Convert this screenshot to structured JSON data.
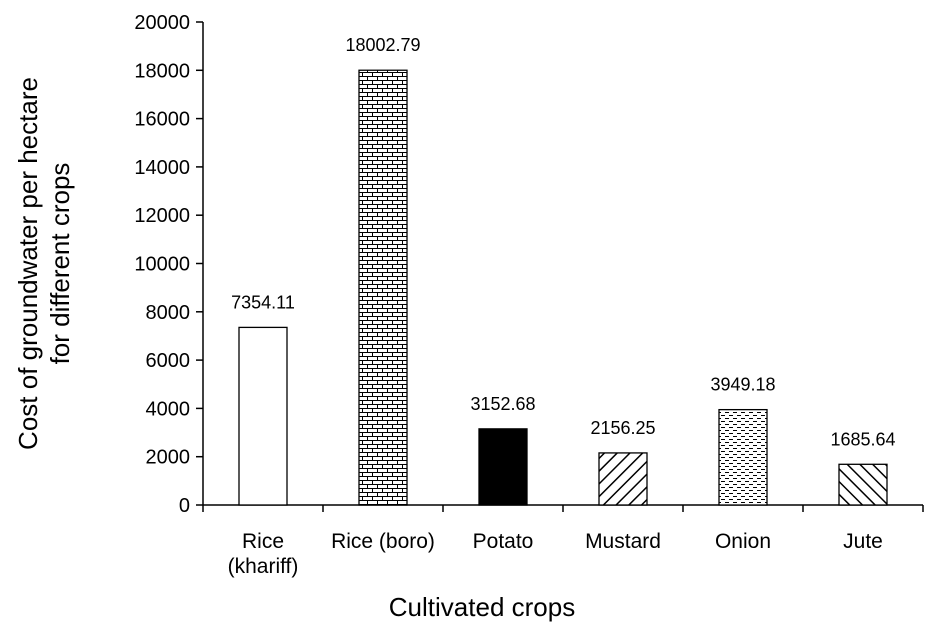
{
  "chart_data": {
    "type": "bar",
    "categories": [
      [
        "Rice",
        "(khariff)"
      ],
      [
        "Rice (boro)"
      ],
      [
        "Potato"
      ],
      [
        "Mustard"
      ],
      [
        "Onion"
      ],
      [
        "Jute"
      ]
    ],
    "values": [
      7354.11,
      18002.79,
      3152.68,
      2156.25,
      3949.18,
      1685.64
    ],
    "data_labels": [
      "7354.11",
      "18002.79",
      "3152.68",
      "2156.25",
      "3949.18",
      "1685.64"
    ],
    "bar_patterns": [
      "none",
      "brick",
      "solid",
      "diagonal-up",
      "dashes",
      "diagonal-down"
    ],
    "title": "",
    "xlabel": "Cultivated crops",
    "ylabel": [
      "Cost of groundwater per hectare",
      "for different crops"
    ],
    "ylim": [
      0,
      20000
    ],
    "yticks": [
      0,
      2000,
      4000,
      6000,
      8000,
      10000,
      12000,
      14000,
      16000,
      18000,
      20000
    ],
    "grid": false,
    "legend": "none"
  }
}
